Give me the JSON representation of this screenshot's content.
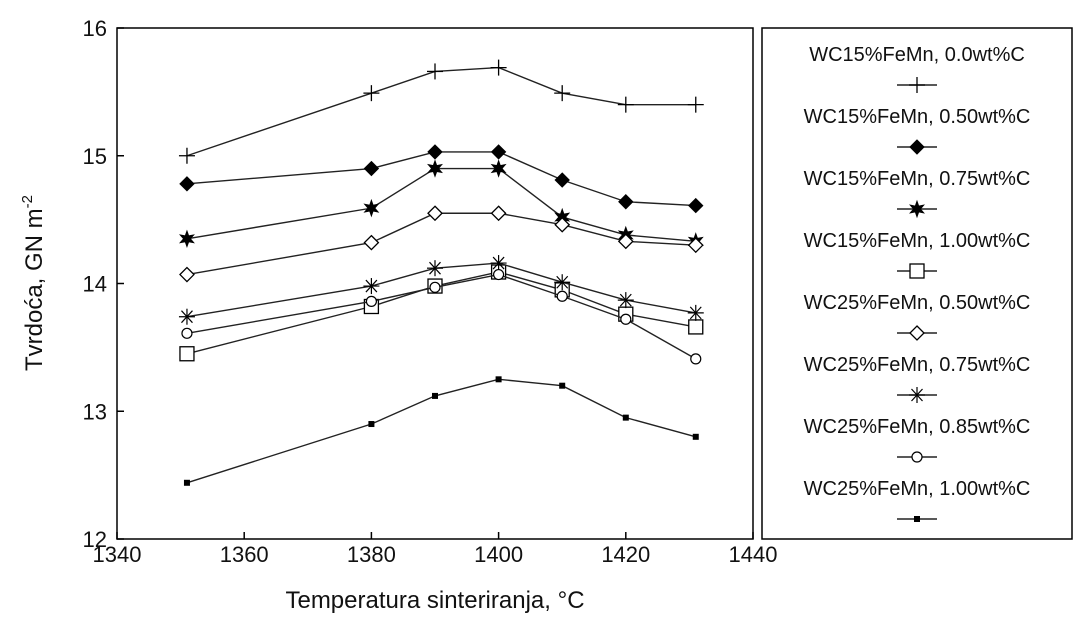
{
  "chart_data": {
    "type": "line",
    "title": "",
    "xlabel": "Temperatura sinteriranja, °C",
    "ylabel_main": "Tvrdoća, GN m",
    "ylabel_sup": "-2",
    "xlim": [
      1340,
      1440
    ],
    "ylim": [
      12,
      16
    ],
    "xticks": [
      1340,
      1360,
      1380,
      1400,
      1420,
      1440
    ],
    "yticks": [
      12,
      13,
      14,
      15,
      16
    ],
    "grid": false,
    "legend_position": "right",
    "series": [
      {
        "name": "WC15%FeMn, 0.0wt%C",
        "marker": "plus",
        "x": [
          1351,
          1380,
          1390,
          1400,
          1410,
          1420,
          1431
        ],
        "y": [
          15.0,
          15.49,
          15.66,
          15.69,
          15.49,
          15.4,
          15.4
        ]
      },
      {
        "name": "WC15%FeMn, 0.50wt%C",
        "marker": "filled-diamond",
        "x": [
          1351,
          1380,
          1390,
          1400,
          1410,
          1420,
          1431
        ],
        "y": [
          14.78,
          14.9,
          15.03,
          15.03,
          14.81,
          14.64,
          14.61
        ]
      },
      {
        "name": "WC15%FeMn, 0.75wt%C",
        "marker": "filled-star",
        "x": [
          1351,
          1380,
          1390,
          1400,
          1410,
          1420,
          1431
        ],
        "y": [
          14.35,
          14.59,
          14.9,
          14.9,
          14.52,
          14.38,
          14.33
        ]
      },
      {
        "name": "WC15%FeMn, 1.00wt%C",
        "marker": "open-square",
        "x": [
          1351,
          1380,
          1390,
          1400,
          1410,
          1420,
          1431
        ],
        "y": [
          13.45,
          13.82,
          13.98,
          14.09,
          13.95,
          13.76,
          13.66
        ]
      },
      {
        "name": "WC25%FeMn, 0.50wt%C",
        "marker": "open-diamond",
        "x": [
          1351,
          1380,
          1390,
          1400,
          1410,
          1420,
          1431
        ],
        "y": [
          14.07,
          14.32,
          14.55,
          14.55,
          14.46,
          14.33,
          14.3
        ]
      },
      {
        "name": "WC25%FeMn, 0.75wt%C",
        "marker": "asterisk",
        "x": [
          1351,
          1380,
          1390,
          1400,
          1410,
          1420,
          1431
        ],
        "y": [
          13.74,
          13.98,
          14.12,
          14.16,
          14.01,
          13.87,
          13.77
        ]
      },
      {
        "name": "WC25%FeMn, 0.85wt%C",
        "marker": "open-circle",
        "x": [
          1351,
          1380,
          1390,
          1400,
          1410,
          1420,
          1431
        ],
        "y": [
          13.61,
          13.86,
          13.97,
          14.07,
          13.9,
          13.72,
          13.41
        ]
      },
      {
        "name": "WC25%FeMn, 1.00wt%C",
        "marker": "small-square",
        "x": [
          1351,
          1380,
          1390,
          1400,
          1410,
          1420,
          1431
        ],
        "y": [
          12.44,
          12.9,
          13.12,
          13.25,
          13.2,
          12.95,
          12.8
        ]
      }
    ]
  }
}
